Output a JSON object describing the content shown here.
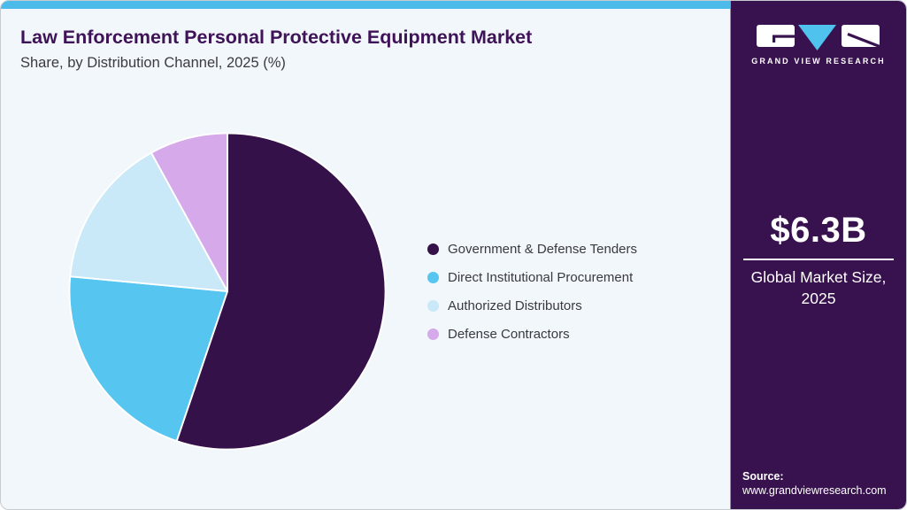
{
  "header": {
    "title": "Law Enforcement Personal Protective Equipment Market",
    "subtitle": "Share, by Distribution Channel, 2025 (%)"
  },
  "chart_data": {
    "type": "pie",
    "title": "Law Enforcement Personal Protective Equipment Market Share, by Distribution Channel, 2025 (%)",
    "categories": [
      "Government & Defense Tenders",
      "Direct Institutional Procurement",
      "Authorized Distributors",
      "Defense Contractors"
    ],
    "values": [
      55.2,
      21.3,
      15.5,
      8.0
    ],
    "unit": "%",
    "colors": [
      "#351149",
      "#56C6F1",
      "#C9E9F8",
      "#D6A9EB"
    ],
    "start_angle": "top",
    "direction": "clockwise",
    "legend_position": "right",
    "slice_stroke_color": "#FFFFFF"
  },
  "sidebar": {
    "logo_text": "GRAND VIEW RESEARCH",
    "logo_accent_color": "#4FC2EE",
    "background_color": "#38124E",
    "market_size_value": "$6.3B",
    "market_size_label": "Global Market Size, 2025",
    "source_label": "Source:",
    "source_url": "www.grandviewresearch.com"
  }
}
